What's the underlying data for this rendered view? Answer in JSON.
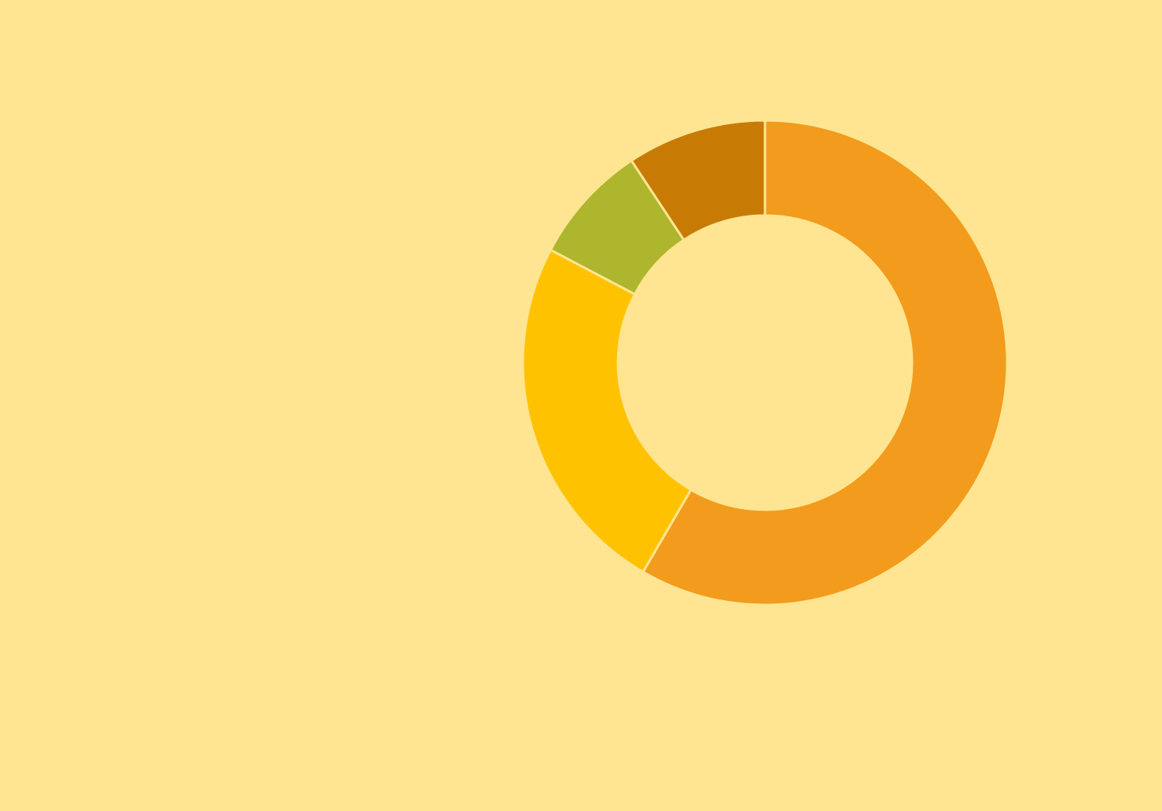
{
  "background_color": "#FFE591",
  "chart_data": {
    "type": "pie",
    "variant": "donut",
    "start_angle": "12 o'clock",
    "direction": "clockwise",
    "slices": [
      {
        "value": 58.4,
        "color": "#F29B1C"
      },
      {
        "value": 24.3,
        "color": "#FFC200"
      },
      {
        "value": 8.0,
        "color": "#ADB62C"
      },
      {
        "value": 9.3,
        "color": "#C77B05"
      }
    ],
    "title": "",
    "legend": "none"
  }
}
